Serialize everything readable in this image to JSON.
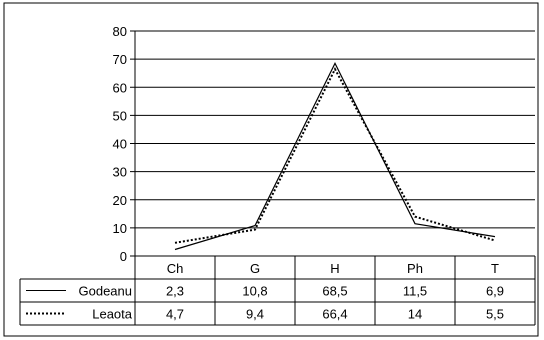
{
  "chart_data": {
    "type": "line",
    "categories": [
      "Ch",
      "G",
      "H",
      "Ph",
      "T"
    ],
    "ylim": [
      0,
      80
    ],
    "yticks": [
      0,
      10,
      20,
      30,
      40,
      50,
      60,
      70,
      80
    ],
    "grid": true,
    "legend": "data table below plot",
    "series": [
      {
        "name": "Godeanu",
        "values": [
          2.3,
          10.8,
          68.5,
          11.5,
          6.9
        ],
        "labels": [
          "2,3",
          "10,8",
          "68,5",
          "11,5",
          "6,9"
        ],
        "style": "solid",
        "color": "#000000"
      },
      {
        "name": "Leaota",
        "values": [
          4.7,
          9.4,
          66.4,
          14,
          5.5
        ],
        "labels": [
          "4,7",
          "9,4",
          "66,4",
          "14",
          "5,5"
        ],
        "style": "dotted",
        "color": "#000000"
      }
    ]
  }
}
